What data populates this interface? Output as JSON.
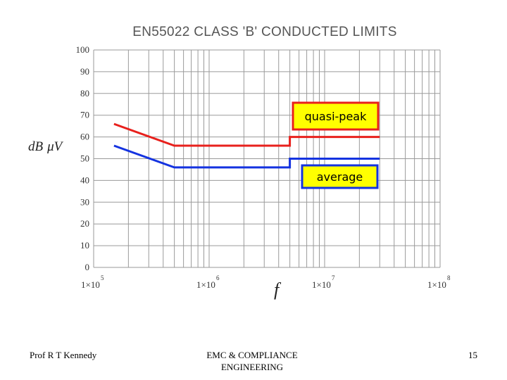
{
  "chart_data": {
    "type": "line",
    "title": "EN55022 CLASS 'B' CONDUCTED LIMITS",
    "xlabel": "f",
    "ylabel_parts": [
      "dB",
      "μ",
      "V"
    ],
    "x_scale": "log",
    "xlim": [
      100000,
      100000000
    ],
    "ylim": [
      0,
      100
    ],
    "y_ticks": [
      0,
      10,
      20,
      30,
      40,
      50,
      60,
      70,
      80,
      90,
      100
    ],
    "x_ticks": [
      {
        "value": 100000,
        "mantissa": "1×10",
        "exp": "5"
      },
      {
        "value": 1000000,
        "mantissa": "1×10",
        "exp": "6"
      },
      {
        "value": 10000000,
        "mantissa": "1×10",
        "exp": "7"
      },
      {
        "value": 100000000,
        "mantissa": "1×10",
        "exp": "8"
      }
    ],
    "grid": true,
    "series": [
      {
        "name": "quasi-peak",
        "color": "#e8201c",
        "x": [
          150000,
          500000,
          500000,
          5000000,
          5000000,
          30000000
        ],
        "y": [
          66,
          56,
          56,
          56,
          60,
          60
        ]
      },
      {
        "name": "average",
        "color": "#1433e0",
        "x": [
          150000,
          500000,
          500000,
          5000000,
          5000000,
          30000000
        ],
        "y": [
          56,
          46,
          46,
          46,
          50,
          50
        ]
      }
    ],
    "legend": [
      {
        "label": "quasi-peak",
        "box_fill": "#ffff00",
        "border": "#e8201c",
        "position": "above red line, right"
      },
      {
        "label": "average",
        "box_fill": "#ffff00",
        "border": "#1433e0",
        "position": "below blue line, right"
      }
    ]
  },
  "footer": {
    "left": "Prof R T Kennedy",
    "center": "EMC & COMPLIANCE ENGINEERING",
    "right": "15"
  }
}
